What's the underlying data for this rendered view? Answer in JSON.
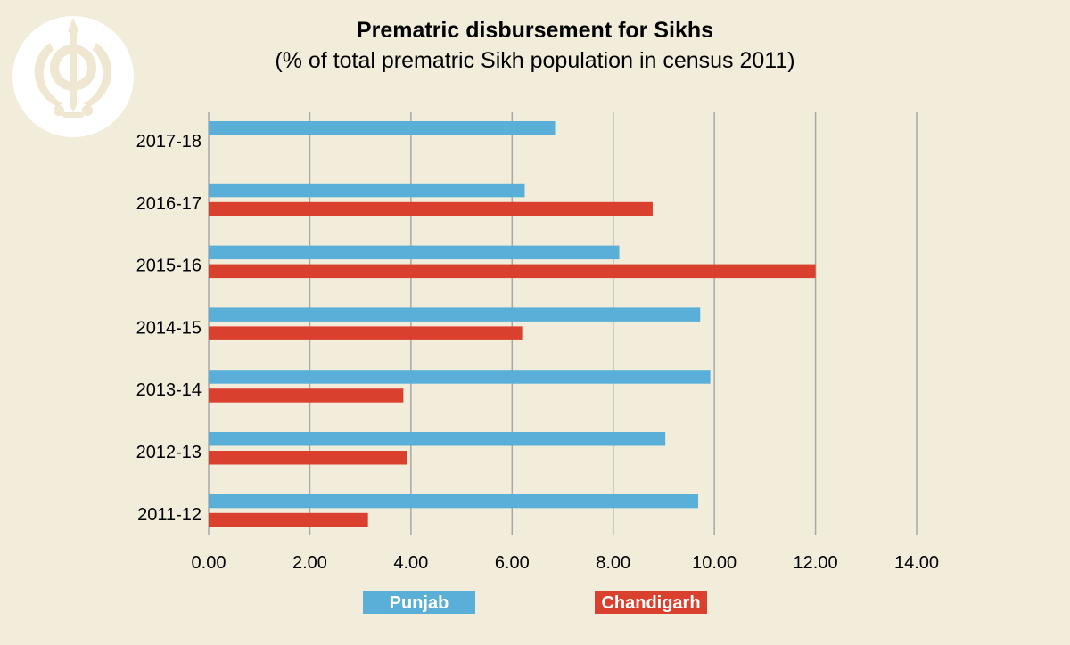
{
  "colors": {
    "background": "#f2ecda",
    "punjab": "#5aafd8",
    "chandigarh": "#d9402e",
    "grid": "#a8a8a8",
    "logo_circle": "#ffffff",
    "logo_symbol": "#efe7d2"
  },
  "logo": {
    "icon": "khanda-icon"
  },
  "chart_data": {
    "type": "bar",
    "orientation": "horizontal",
    "title": "Prematric disbursement for Sikhs",
    "subtitle": "(% of total prematric Sikh population in census 2011)",
    "xlabel": "",
    "ylabel": "",
    "xlim": [
      0,
      14
    ],
    "x_ticks": [
      "0.00",
      "2.00",
      "4.00",
      "6.00",
      "8.00",
      "10.00",
      "12.00",
      "14.00"
    ],
    "x_tick_values": [
      0,
      2,
      4,
      6,
      8,
      10,
      12,
      14
    ],
    "grid": true,
    "legend_position": "bottom",
    "categories": [
      "2017-18",
      "2016-17",
      "2015-16",
      "2014-15",
      "2013-14",
      "2012-13",
      "2011-12"
    ],
    "series": [
      {
        "name": "Punjab",
        "color": "#5aafd8",
        "values": [
          6.85,
          6.25,
          8.12,
          9.72,
          9.92,
          9.03,
          9.68
        ]
      },
      {
        "name": "Chandigarh",
        "color": "#d9402e",
        "values": [
          null,
          8.78,
          12.0,
          6.2,
          3.85,
          3.92,
          3.15
        ]
      }
    ]
  }
}
